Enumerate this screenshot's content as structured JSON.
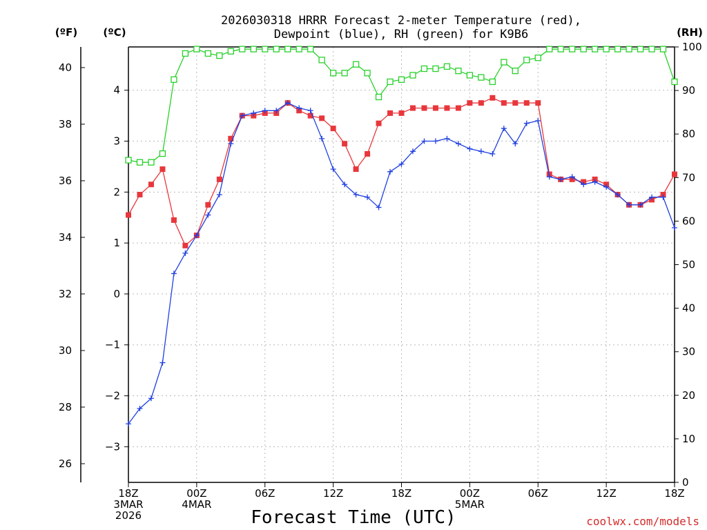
{
  "title_line1": "2026030318 HRRR Forecast 2-meter Temperature (red),",
  "title_line2": "Dewpoint (blue), RH (green) for K9B6",
  "units": {
    "fahrenheit": "(ºF)",
    "celsius": "(ºC)",
    "rh": "(RH)"
  },
  "xlabel": "Forecast Time (UTC)",
  "credit": "coolwx.com/models",
  "colors": {
    "temperature": "#e8373c",
    "dewpoint": "#1f3fe0",
    "rh": "#27d12a",
    "credit": "#d52b2b"
  },
  "chart_data": {
    "type": "line",
    "title": "2026030318 HRRR Forecast 2-meter Temperature (red), Dewpoint (blue), RH (green) for K9B6",
    "xlabel": "Forecast Time (UTC)",
    "x_hours": [
      0,
      1,
      2,
      3,
      4,
      5,
      6,
      7,
      8,
      9,
      10,
      11,
      12,
      13,
      14,
      15,
      16,
      17,
      18,
      19,
      20,
      21,
      22,
      23,
      24,
      25,
      26,
      27,
      28,
      29,
      30,
      31,
      32,
      33,
      34,
      35,
      36,
      37,
      38,
      39,
      40,
      41,
      42,
      43,
      44,
      45,
      46,
      47,
      48
    ],
    "x_ticks": [
      {
        "hour": 0,
        "lines": [
          "18Z",
          "3MAR",
          "2026"
        ]
      },
      {
        "hour": 6,
        "lines": [
          "00Z",
          "4MAR"
        ]
      },
      {
        "hour": 12,
        "lines": [
          "06Z"
        ]
      },
      {
        "hour": 18,
        "lines": [
          "12Z"
        ]
      },
      {
        "hour": 24,
        "lines": [
          "18Z"
        ]
      },
      {
        "hour": 30,
        "lines": [
          "00Z",
          "5MAR"
        ]
      },
      {
        "hour": 36,
        "lines": [
          "06Z"
        ]
      },
      {
        "hour": 42,
        "lines": [
          "12Z"
        ]
      },
      {
        "hour": 48,
        "lines": [
          "18Z"
        ]
      }
    ],
    "celsius_axis": {
      "range": [
        -3.7,
        4.85
      ],
      "ticks": [
        -3,
        -2,
        -1,
        0,
        1,
        2,
        3,
        4
      ]
    },
    "fahrenheit_axis": {
      "ticks": [
        26,
        28,
        30,
        32,
        34,
        36,
        38,
        40
      ]
    },
    "rh_axis": {
      "range": [
        0,
        100
      ],
      "ticks": [
        0,
        10,
        20,
        30,
        40,
        50,
        60,
        70,
        80,
        90,
        100
      ]
    },
    "series": [
      {
        "name": "Temperature (°C)",
        "color": "#e8373c",
        "marker": "filled-square",
        "values": [
          1.55,
          1.95,
          2.15,
          2.45,
          1.45,
          0.95,
          1.15,
          1.75,
          2.25,
          3.05,
          3.5,
          3.5,
          3.55,
          3.55,
          3.75,
          3.6,
          3.5,
          3.45,
          3.25,
          2.95,
          2.45,
          2.75,
          3.35,
          3.55,
          3.55,
          3.65,
          3.65,
          3.65,
          3.65,
          3.65,
          3.75,
          3.75,
          3.85,
          3.75,
          3.75,
          3.75,
          3.75,
          2.35,
          2.25,
          2.25,
          2.2,
          2.25,
          2.15,
          1.95,
          1.75,
          1.75,
          1.85,
          1.95,
          2.35
        ]
      },
      {
        "name": "Dewpoint (°C)",
        "color": "#1f3fe0",
        "marker": "plus",
        "values": [
          -2.55,
          -2.25,
          -2.05,
          -1.35,
          0.4,
          0.8,
          1.15,
          1.55,
          1.95,
          2.95,
          3.5,
          3.55,
          3.6,
          3.6,
          3.75,
          3.65,
          3.6,
          3.05,
          2.45,
          2.15,
          1.95,
          1.9,
          1.7,
          2.4,
          2.55,
          2.8,
          3.0,
          3.0,
          3.05,
          2.95,
          2.85,
          2.8,
          2.75,
          3.25,
          2.95,
          3.35,
          3.4,
          2.3,
          2.25,
          2.3,
          2.15,
          2.2,
          2.1,
          1.95,
          1.75,
          1.75,
          1.9,
          1.9,
          1.3
        ]
      },
      {
        "name": "RH (%)",
        "color": "#27d12a",
        "marker": "open-square",
        "values": [
          74,
          73.5,
          73.5,
          75.5,
          92.5,
          98.5,
          99.5,
          98.5,
          98,
          99,
          99.5,
          99.5,
          99.5,
          99.5,
          99.5,
          99.5,
          99.5,
          97,
          94,
          94,
          96,
          94,
          88.5,
          92,
          92.5,
          93.5,
          95,
          95,
          95.5,
          94.5,
          93.5,
          93,
          92,
          96.5,
          94.5,
          97,
          97.5,
          99.5,
          99.5,
          99.5,
          99.5,
          99.5,
          99.5,
          99.5,
          99.5,
          99.5,
          99.5,
          99.5,
          92
        ]
      }
    ]
  }
}
